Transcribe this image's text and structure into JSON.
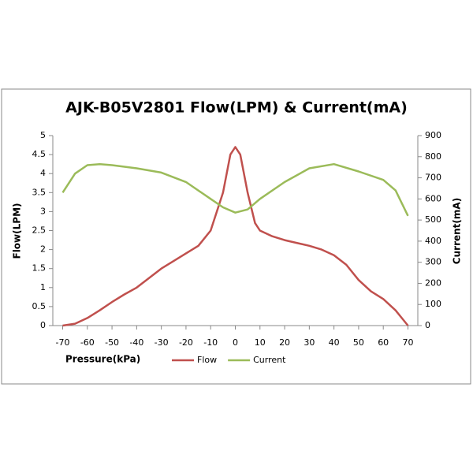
{
  "chart_data": {
    "type": "line",
    "title": "AJK-B05V2801 Flow(LPM) & Current(mA)",
    "x_label": "Pressure(kPa)",
    "y_label": "Flow(LPM)",
    "y2_label": "Current(mA)",
    "xlim": [
      -74,
      74
    ],
    "xticks": [
      -70,
      -60,
      -50,
      -40,
      -30,
      -20,
      -10,
      0,
      10,
      20,
      30,
      40,
      50,
      60,
      70
    ],
    "ylim": [
      0,
      5
    ],
    "yticks": [
      0,
      0.5,
      1,
      1.5,
      2,
      2.5,
      3,
      3.5,
      4,
      4.5,
      5
    ],
    "y2lim": [
      0,
      900
    ],
    "y2ticks": [
      0,
      100,
      200,
      300,
      400,
      500,
      600,
      700,
      800,
      900
    ],
    "legend": "bottom",
    "series": [
      {
        "name": "Flow",
        "color": "#c0504d",
        "x": [
          -70,
          -65,
          -60,
          -55,
          -50,
          -45,
          -40,
          -35,
          -30,
          -25,
          -20,
          -15,
          -10,
          -5,
          -2,
          0,
          2,
          5,
          8,
          10,
          15,
          20,
          30,
          35,
          40,
          45,
          50,
          55,
          60,
          65,
          70
        ],
        "values": [
          0,
          0.05,
          0.2,
          0.4,
          0.62,
          0.82,
          1.0,
          1.25,
          1.5,
          1.7,
          1.9,
          2.1,
          2.5,
          3.5,
          4.5,
          4.7,
          4.5,
          3.5,
          2.7,
          2.5,
          2.35,
          2.25,
          2.1,
          2.0,
          1.85,
          1.6,
          1.2,
          0.9,
          0.7,
          0.4,
          0
        ]
      },
      {
        "name": "Current",
        "color": "#9bbb59",
        "axis": "y2",
        "x": [
          -70,
          -65,
          -60,
          -55,
          -50,
          -40,
          -30,
          -20,
          -10,
          -5,
          0,
          5,
          10,
          20,
          30,
          40,
          50,
          60,
          65,
          70
        ],
        "values": [
          630,
          720,
          760,
          765,
          760,
          745,
          725,
          680,
          600,
          560,
          535,
          550,
          600,
          680,
          745,
          765,
          730,
          690,
          640,
          520
        ]
      }
    ]
  }
}
